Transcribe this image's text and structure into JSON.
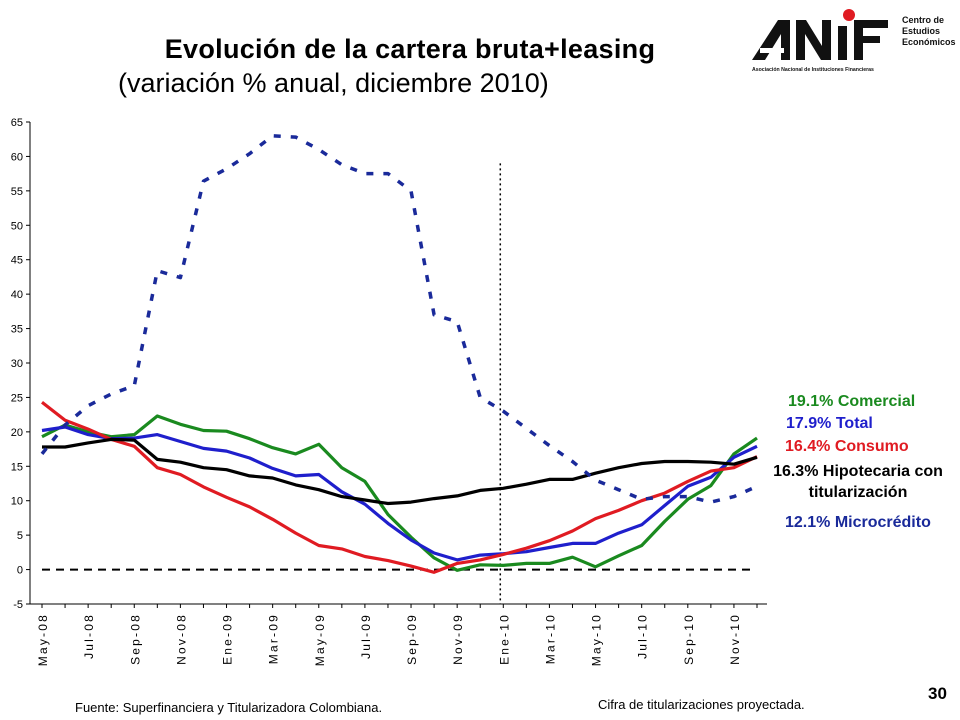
{
  "title": "Evolución de la cartera bruta+leasing",
  "subtitle": "(variación % anual, diciembre 2010)",
  "logo": {
    "wordmark": "ANIF",
    "tagline": "Asociación Nacional de Instituciones Financieras",
    "center_lines": [
      "Centro de",
      "Estudios",
      "Económicos"
    ],
    "colors": {
      "mark": "#111111",
      "dot": "#e01b22"
    }
  },
  "chart_data": {
    "type": "line",
    "title": "",
    "xlabel": "",
    "ylabel": "",
    "ylim": [
      -5,
      65
    ],
    "yticks": [
      -5,
      0,
      5,
      10,
      15,
      20,
      25,
      30,
      35,
      40,
      45,
      50,
      55,
      60,
      65
    ],
    "categories": [
      "May-08",
      "Jun-08",
      "Jul-08",
      "Aug-08",
      "Sep-08",
      "Oct-08",
      "Nov-08",
      "Dec-08",
      "Ene-09",
      "Feb-09",
      "Mar-09",
      "Apr-09",
      "May-09",
      "Jun-09",
      "Jul-09",
      "Aug-09",
      "Sep-09",
      "Oct-09",
      "Nov-09",
      "Dec-09",
      "Ene-10",
      "Feb-10",
      "Mar-10",
      "Apr-10",
      "May-10",
      "Jun-10",
      "Jul-10",
      "Aug-10",
      "Sep-10",
      "Oct-10",
      "Nov-10",
      "Dec-10"
    ],
    "tick_labels": [
      "May-08",
      "Jul-08",
      "Sep-08",
      "Nov-08",
      "Ene-09",
      "Mar-09",
      "May-09",
      "Jul-09",
      "Sep-09",
      "Nov-09",
      "Ene-10",
      "Mar-10",
      "May-10",
      "Jul-10",
      "Sep-10",
      "Nov-10"
    ],
    "grid": false,
    "vline_category": "Ene-10",
    "zero_line": {
      "value": 0,
      "style": "dashed",
      "color": "#000000"
    },
    "series": [
      {
        "name": "Comercial",
        "color": "#1a8a1f",
        "style": "solid",
        "values": [
          19.3,
          21.0,
          20.0,
          19.3,
          19.6,
          22.3,
          21.1,
          20.2,
          20.1,
          19.0,
          17.7,
          16.8,
          18.2,
          14.8,
          12.8,
          8.0,
          4.7,
          1.7,
          -0.1,
          0.7,
          0.6,
          0.9,
          0.9,
          1.8,
          0.4,
          2.0,
          3.5,
          7.0,
          10.2,
          12.2,
          16.8,
          19.1
        ]
      },
      {
        "name": "Total",
        "color": "#1f1fcc",
        "style": "solid",
        "values": [
          20.2,
          20.7,
          19.6,
          19.0,
          19.1,
          19.6,
          18.6,
          17.6,
          17.2,
          16.2,
          14.7,
          13.6,
          13.8,
          11.3,
          9.5,
          6.7,
          4.3,
          2.4,
          1.4,
          2.1,
          2.3,
          2.6,
          3.2,
          3.8,
          3.8,
          5.3,
          6.5,
          9.3,
          12.1,
          13.4,
          16.3,
          17.9
        ]
      },
      {
        "name": "Consumo",
        "color": "#e01b22",
        "style": "solid",
        "values": [
          24.3,
          21.7,
          20.4,
          18.9,
          17.9,
          14.8,
          13.8,
          12.0,
          10.5,
          9.1,
          7.3,
          5.3,
          3.5,
          3.0,
          1.9,
          1.3,
          0.5,
          -0.4,
          0.9,
          1.4,
          2.2,
          3.1,
          4.2,
          5.6,
          7.4,
          8.6,
          10.0,
          11.1,
          12.8,
          14.3,
          14.8,
          16.4
        ]
      },
      {
        "name": "Hipotecaria con titularización",
        "color": "#000000",
        "style": "solid",
        "values": [
          17.8,
          17.8,
          18.4,
          18.9,
          18.8,
          16.0,
          15.6,
          14.8,
          14.5,
          13.6,
          13.3,
          12.3,
          11.6,
          10.6,
          10.1,
          9.6,
          9.8,
          10.3,
          10.7,
          11.5,
          11.8,
          12.4,
          13.1,
          13.1,
          14.0,
          14.8,
          15.4,
          15.7,
          15.7,
          15.6,
          15.3,
          16.3
        ]
      },
      {
        "name": "Microcrédito",
        "color": "#1a2a9a",
        "style": "dashed",
        "values": [
          16.8,
          21.0,
          23.8,
          25.5,
          26.7,
          43.4,
          42.4,
          56.4,
          58.2,
          60.4,
          63.0,
          62.8,
          61.0,
          58.8,
          57.5,
          57.5,
          55.0,
          37.0,
          36.0,
          25.0,
          23.0,
          20.5,
          18.0,
          15.7,
          13.0,
          11.6,
          10.2,
          10.6,
          10.6,
          9.8,
          10.6,
          12.1
        ]
      }
    ]
  },
  "callouts": [
    {
      "value": "19.1%",
      "label": "Comercial",
      "color": "#1a8a1f"
    },
    {
      "value": "17.9%",
      "label": "Total",
      "color": "#1f1fcc"
    },
    {
      "value": "16.4%",
      "label": "Consumo",
      "color": "#e01b22"
    },
    {
      "value": "16.3%",
      "label": "Hipotecaria con",
      "label2": "titularización",
      "color": "#000000"
    },
    {
      "value": "12.1%",
      "label": "Microcrédito",
      "color": "#1a2a9a"
    }
  ],
  "footnotes": {
    "source": "Fuente: Superfinanciera y Titularizadora Colombiana.",
    "projection": "Cifra de titularizaciones proyectada."
  },
  "page_number": "30"
}
